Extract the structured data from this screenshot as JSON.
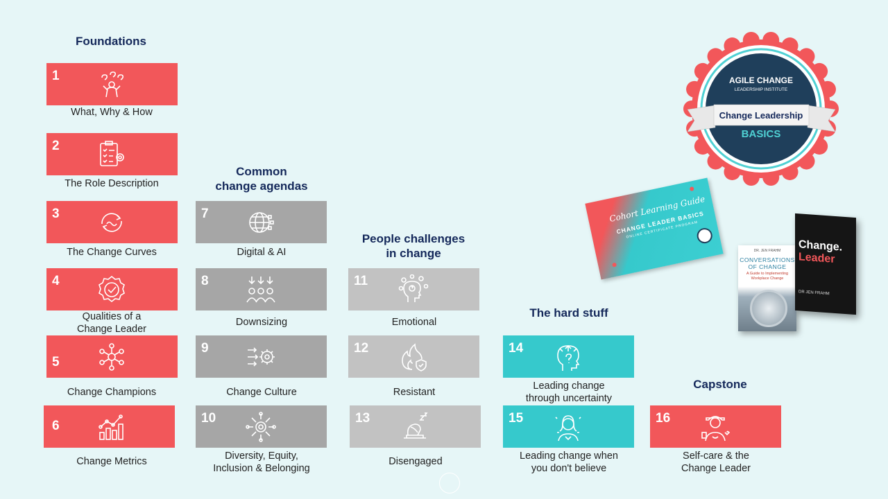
{
  "headings": {
    "foundations": [
      "Foundations"
    ],
    "common": [
      "Common",
      "change agendas"
    ],
    "people": [
      "People challenges",
      "in change"
    ],
    "hard": [
      "The hard stuff"
    ],
    "capstone": [
      "Capstone"
    ]
  },
  "tiles": [
    {
      "num": "1",
      "caption": [
        "What, Why & How"
      ],
      "icon": "question-person-icon"
    },
    {
      "num": "2",
      "caption": [
        "The Role Description"
      ],
      "icon": "clipboard-gear-icon"
    },
    {
      "num": "3",
      "caption": [
        "The Change Curves"
      ],
      "icon": "cycle-arrows-icon"
    },
    {
      "num": "4",
      "caption": [
        "Qualities of a",
        "Change Leader"
      ],
      "icon": "badge-check-icon"
    },
    {
      "num": "5",
      "caption": [
        "Change Champions"
      ],
      "icon": "network-people-icon"
    },
    {
      "num": "6",
      "caption": [
        "Change Metrics"
      ],
      "icon": "bar-chart-icon"
    },
    {
      "num": "7",
      "caption": [
        "Digital & AI"
      ],
      "icon": "digital-globe-icon"
    },
    {
      "num": "8",
      "caption": [
        "Downsizing"
      ],
      "icon": "people-down-icon"
    },
    {
      "num": "9",
      "caption": [
        "Change Culture"
      ],
      "icon": "gear-arrows-icon"
    },
    {
      "num": "10",
      "caption": [
        "Diversity, Equity,",
        "Inclusion & Belonging"
      ],
      "icon": "hands-circle-icon"
    },
    {
      "num": "11",
      "caption": [
        "Emotional"
      ],
      "icon": "head-emotions-icon"
    },
    {
      "num": "12",
      "caption": [
        "Resistant"
      ],
      "icon": "fire-shield-icon"
    },
    {
      "num": "13",
      "caption": [
        "Disengaged"
      ],
      "icon": "sleeping-desk-icon"
    },
    {
      "num": "14",
      "caption": [
        "Leading change",
        "through uncertainty"
      ],
      "icon": "head-question-icon"
    },
    {
      "num": "15",
      "caption": [
        "Leading change when",
        "you don't believe"
      ],
      "icon": "woman-thinking-icon"
    },
    {
      "num": "16",
      "caption": [
        "Self-care & the",
        "Change Leader"
      ],
      "icon": "selfcare-person-icon"
    }
  ],
  "badge": {
    "line1": "AGILE CHANGE",
    "line2": "LEADERSHIP INSTITUTE",
    "ribbon": "Change Leadership",
    "sub": "BASICS"
  },
  "guide": {
    "title": "Cohort Learning Guide",
    "subtitle": "CHANGE LEADER BASICS",
    "program": "ONLINE CERTIFICATE PROGRAM"
  },
  "book1": {
    "author": "DR. JEN FRAHM",
    "title1": "CONVERSATIONS",
    "title2": "OF CHANGE",
    "sub1": "A Guide to Implementing",
    "sub2": "Workplace Change"
  },
  "book2": {
    "title1": "Change.",
    "title2": "Leader",
    "author": "DR JEN FRAHM"
  },
  "colors": {
    "red": "#f2575a",
    "gray": "#a6a6a6",
    "lightgray": "#c2c2c2",
    "teal": "#36c9cc",
    "navy": "#14285a"
  }
}
